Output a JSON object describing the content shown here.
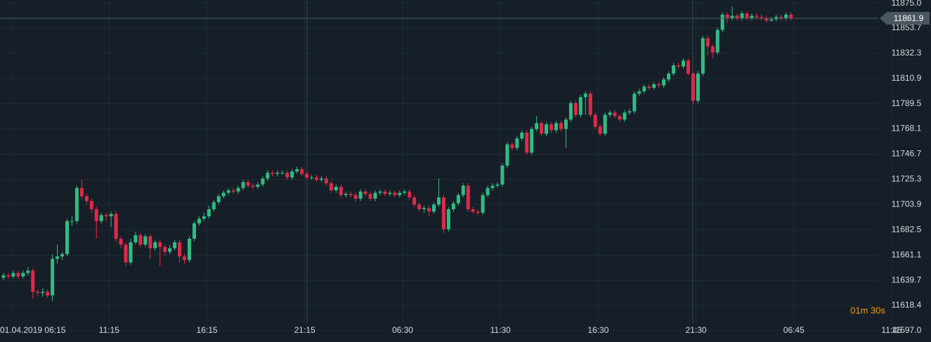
{
  "chart_data": {
    "type": "candlestick",
    "open": [
      11642,
      11644,
      11643,
      11646,
      11643,
      11646,
      11648,
      11630,
      11629,
      11630,
      11627,
      11658,
      11660,
      11662,
      11690,
      11690,
      11718,
      11711,
      11707,
      11700,
      11690,
      11695,
      11694,
      11696,
      11675,
      11670,
      11655,
      11672,
      11678,
      11670,
      11677,
      11667,
      11672,
      11668,
      11664,
      11667,
      11672,
      11660,
      11657,
      11675,
      11688,
      11692,
      11694,
      11700,
      11706,
      11711,
      11714,
      11716,
      11715,
      11718,
      11723,
      11720,
      11719,
      11721,
      11726,
      11731,
      11730,
      11731,
      11731,
      11727,
      11732,
      11734,
      11730,
      11727,
      11727,
      11725,
      11726,
      11722,
      11716,
      11719,
      11712,
      11713,
      11712,
      11709,
      11715,
      11713,
      11709,
      11714,
      11715,
      11713,
      11714,
      11712,
      11714,
      11715,
      11710,
      11704,
      11700,
      11701,
      11698,
      11704,
      11710,
      11683,
      11700,
      11705,
      11712,
      11720,
      11700,
      11698,
      11697,
      11712,
      11718,
      11720,
      11721,
      11737,
      11755,
      11752,
      11760,
      11765,
      11748,
      11768,
      11773,
      11764,
      11772,
      11767,
      11773,
      11768,
      11776,
      11790,
      11780,
      11795,
      11798,
      11780,
      11770,
      11764,
      11780,
      11782,
      11779,
      11776,
      11782,
      11783,
      11798,
      11800,
      11804,
      11803,
      11806,
      11805,
      11810,
      11815,
      11822,
      11821,
      11826,
      11815,
      11792,
      11815,
      11845,
      11838,
      11833,
      11852,
      11865,
      11862,
      11864,
      11862,
      11866,
      11862,
      11864,
      11863,
      11862,
      11860,
      11861,
      11863,
      11862,
      11865
    ],
    "high": [
      11646,
      11646,
      11648,
      11648,
      11648,
      11651,
      11650,
      11632,
      11633,
      11632,
      11662,
      11670,
      11664,
      11692,
      11694,
      11720,
      11725,
      11713,
      11709,
      11702,
      11697,
      11697,
      11698,
      11698,
      11677,
      11672,
      11675,
      11681,
      11680,
      11679,
      11679,
      11674,
      11674,
      11670,
      11670,
      11674,
      11674,
      11662,
      11677,
      11690,
      11694,
      11697,
      11703,
      11708,
      11713,
      11716,
      11718,
      11718,
      11720,
      11725,
      11725,
      11722,
      11723,
      11728,
      11733,
      11733,
      11733,
      11733,
      11733,
      11734,
      11736,
      11736,
      11732,
      11729,
      11729,
      11728,
      11728,
      11724,
      11721,
      11721,
      11715,
      11715,
      11714,
      11717,
      11717,
      11715,
      11716,
      11717,
      11717,
      11716,
      11716,
      11716,
      11717,
      11717,
      11712,
      11706,
      11703,
      11703,
      11706,
      11726,
      11712,
      11702,
      11707,
      11714,
      11722,
      11722,
      11702,
      11700,
      11714,
      11720,
      11722,
      11723,
      11739,
      11757,
      11757,
      11762,
      11767,
      11767,
      11770,
      11779,
      11775,
      11774,
      11774,
      11775,
      11775,
      11778,
      11792,
      11792,
      11797,
      11800,
      11800,
      11782,
      11772,
      11782,
      11784,
      11784,
      11781,
      11784,
      11785,
      11800,
      11802,
      11806,
      11806,
      11808,
      11808,
      11812,
      11817,
      11824,
      11824,
      11828,
      11828,
      11817,
      11817,
      11847,
      11847,
      11840,
      11854,
      11867,
      11867,
      11872,
      11866,
      11868,
      11868,
      11866,
      11866,
      11865,
      11864,
      11863,
      11865,
      11865,
      11867,
      11867
    ],
    "low": [
      11640,
      11641,
      11641,
      11641,
      11641,
      11644,
      11624,
      11626,
      11626,
      11625,
      11622,
      11654,
      11657,
      11660,
      11686,
      11688,
      11709,
      11704,
      11697,
      11675,
      11688,
      11690,
      11685,
      11672,
      11667,
      11652,
      11653,
      11670,
      11668,
      11668,
      11658,
      11665,
      11652,
      11661,
      11662,
      11665,
      11655,
      11654,
      11655,
      11673,
      11686,
      11690,
      11692,
      11698,
      11704,
      11709,
      11712,
      11713,
      11713,
      11716,
      11718,
      11717,
      11717,
      11719,
      11724,
      11728,
      11728,
      11729,
      11725,
      11725,
      11730,
      11728,
      11725,
      11725,
      11723,
      11723,
      11720,
      11714,
      11714,
      11710,
      11710,
      11710,
      11706,
      11707,
      11711,
      11707,
      11707,
      11712,
      11711,
      11711,
      11710,
      11710,
      11712,
      11708,
      11702,
      11698,
      11697,
      11694,
      11696,
      11702,
      11680,
      11681,
      11698,
      11703,
      11710,
      11698,
      11696,
      11695,
      11695,
      11710,
      11716,
      11718,
      11719,
      11735,
      11750,
      11750,
      11758,
      11746,
      11746,
      11766,
      11762,
      11762,
      11765,
      11765,
      11766,
      11752,
      11774,
      11778,
      11778,
      11780,
      11778,
      11768,
      11762,
      11762,
      11778,
      11777,
      11774,
      11774,
      11780,
      11781,
      11796,
      11798,
      11801,
      11801,
      11803,
      11803,
      11808,
      11813,
      11819,
      11819,
      11813,
      11789,
      11790,
      11813,
      11830,
      11828,
      11831,
      11850,
      11858,
      11860,
      11860,
      11860,
      11860,
      11860,
      11861,
      11860,
      11858,
      11859,
      11859,
      11860,
      11860,
      11860
    ],
    "close": [
      11644,
      11643,
      11646,
      11643,
      11646,
      11648,
      11630,
      11629,
      11630,
      11627,
      11658,
      11660,
      11662,
      11690,
      11690,
      11718,
      11711,
      11707,
      11700,
      11690,
      11695,
      11694,
      11696,
      11675,
      11670,
      11655,
      11672,
      11678,
      11670,
      11677,
      11667,
      11672,
      11668,
      11664,
      11667,
      11672,
      11660,
      11657,
      11675,
      11688,
      11692,
      11694,
      11700,
      11706,
      11711,
      11714,
      11716,
      11715,
      11718,
      11723,
      11720,
      11719,
      11721,
      11726,
      11731,
      11730,
      11731,
      11731,
      11727,
      11732,
      11734,
      11730,
      11727,
      11727,
      11725,
      11726,
      11722,
      11716,
      11719,
      11712,
      11713,
      11712,
      11709,
      11715,
      11713,
      11709,
      11714,
      11715,
      11713,
      11714,
      11712,
      11714,
      11715,
      11710,
      11704,
      11700,
      11701,
      11698,
      11704,
      11710,
      11683,
      11700,
      11705,
      11712,
      11720,
      11700,
      11698,
      11697,
      11712,
      11718,
      11720,
      11721,
      11737,
      11755,
      11752,
      11760,
      11765,
      11748,
      11768,
      11773,
      11764,
      11772,
      11767,
      11773,
      11768,
      11776,
      11790,
      11780,
      11795,
      11798,
      11780,
      11770,
      11764,
      11780,
      11782,
      11779,
      11776,
      11782,
      11783,
      11798,
      11800,
      11804,
      11803,
      11806,
      11805,
      11810,
      11815,
      11822,
      11821,
      11826,
      11815,
      11792,
      11815,
      11845,
      11838,
      11833,
      11852,
      11865,
      11862,
      11864,
      11862,
      11866,
      11862,
      11864,
      11863,
      11862,
      11860,
      11861,
      11863,
      11862,
      11865,
      11862
    ],
    "up_color": "#2ebd85",
    "down_color": "#e0294a",
    "xlim": [
      -0.72,
      183.9
    ],
    "xticks": [
      {
        "value": 1.6,
        "label": "01.04.2019 06:15"
      },
      {
        "value": 21.6,
        "label": "11:15"
      },
      {
        "value": 41.6,
        "label": "16:15"
      },
      {
        "value": 61.6,
        "label": "21:15"
      },
      {
        "value": 81.6,
        "label": "06:30"
      },
      {
        "value": 101.6,
        "label": "11:30"
      },
      {
        "value": 121.6,
        "label": "16:30"
      },
      {
        "value": 141.6,
        "label": "21:30"
      },
      {
        "value": 161.6,
        "label": "06:45"
      },
      {
        "value": 181.6,
        "label": "11:45"
      }
    ],
    "ylim": [
      11597,
      11875
    ],
    "yticks": [
      {
        "value": 11875,
        "label": "11875.0"
      },
      11853.7,
      11832.3,
      11810.9,
      11789.5,
      11768.1,
      11746.7,
      11725.3,
      11703.9,
      11682.5,
      11661.1,
      11639.7,
      11618.4,
      {
        "value": 11597,
        "label": "11597.0"
      }
    ],
    "grid": true,
    "last_price": 11861.9,
    "timer": "01m 30s"
  }
}
